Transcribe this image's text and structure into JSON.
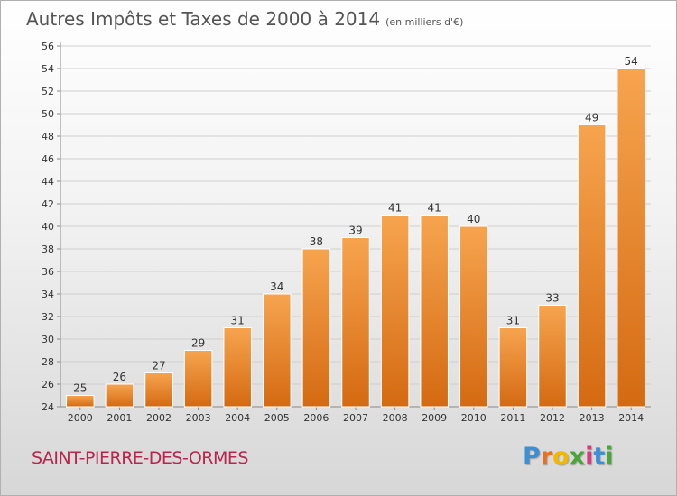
{
  "header": {
    "title": "Autres Impôts et Taxes de 2000 à 2014",
    "subtitle": "(en milliers d'€)"
  },
  "footer": {
    "commune": "SAINT-PIERRE-DES-ORMES",
    "logo_letters": [
      "P",
      "r",
      "o",
      "x",
      "i",
      "t",
      "i"
    ],
    "logo_colors": [
      "#3b8fd4",
      "#e8721c",
      "#f2b705",
      "#4aa63a",
      "#d93a7a",
      "#3b8fd4",
      "#4aa63a"
    ]
  },
  "colors": {
    "bar_top": "#f7a44f",
    "bar_bottom": "#d46a12",
    "bar_edge": "#ffffff",
    "grid": "#cfcfcf",
    "axis_text": "#333333"
  },
  "chart_data": {
    "type": "bar",
    "title": "Autres Impôts et Taxes de 2000 à 2014",
    "subtitle": "(en milliers d'€)",
    "categories": [
      "2000",
      "2001",
      "2002",
      "2003",
      "2004",
      "2005",
      "2006",
      "2007",
      "2008",
      "2009",
      "2010",
      "2011",
      "2012",
      "2013",
      "2014"
    ],
    "values": [
      25,
      26,
      27,
      29,
      31,
      34,
      38,
      39,
      41,
      41,
      40,
      31,
      33,
      49,
      54
    ],
    "xlabel": "",
    "ylabel": "",
    "ylim": [
      24,
      56
    ],
    "yticks": [
      24,
      26,
      28,
      30,
      32,
      34,
      36,
      38,
      40,
      42,
      44,
      46,
      48,
      50,
      52,
      54,
      56
    ],
    "grid": true,
    "data_labels": true
  }
}
